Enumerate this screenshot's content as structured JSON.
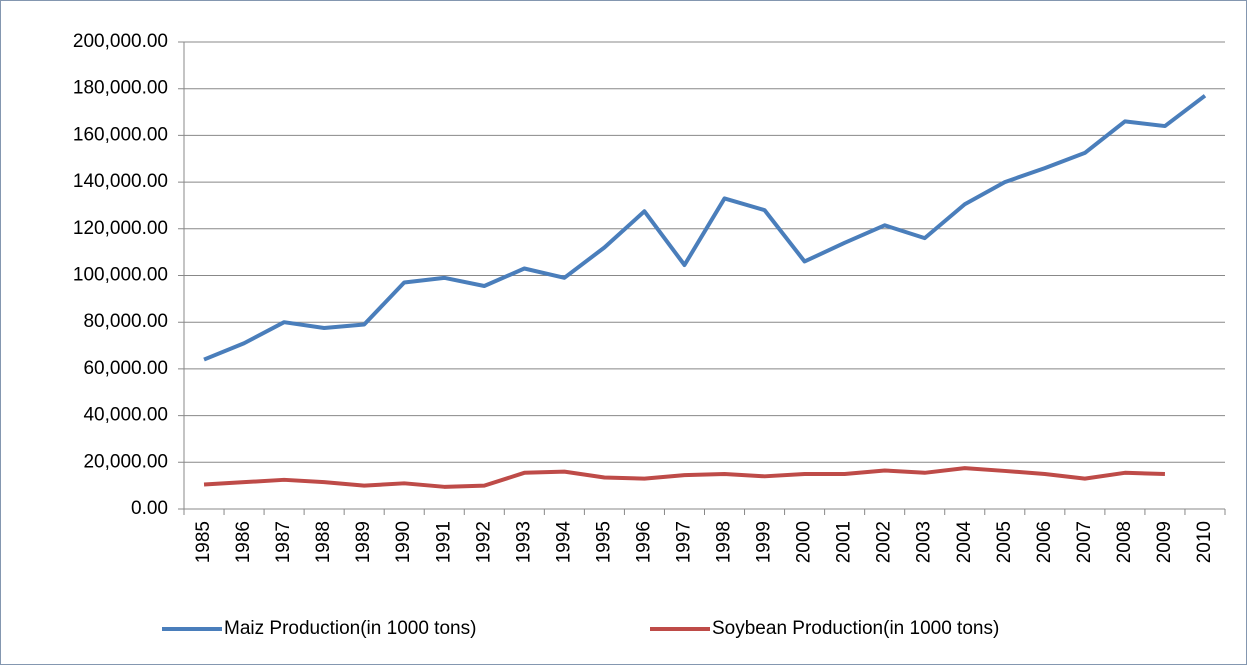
{
  "chart_data": {
    "type": "line",
    "categories": [
      "1985",
      "1986",
      "1987",
      "1988",
      "1989",
      "1990",
      "1991",
      "1992",
      "1993",
      "1994",
      "1995",
      "1996",
      "1997",
      "1998",
      "1999",
      "2000",
      "2001",
      "2002",
      "2003",
      "2004",
      "2005",
      "2006",
      "2007",
      "2008",
      "2009",
      "2010"
    ],
    "series": [
      {
        "name": "Maiz Production(in 1000 tons)",
        "color": "#4a7ebb",
        "values": [
          64000,
          71000,
          80000,
          77500,
          79000,
          97000,
          99000,
          95500,
          103000,
          99000,
          112000,
          127500,
          104500,
          133000,
          128000,
          106000,
          114000,
          121500,
          116000,
          130500,
          140000,
          146000,
          152500,
          166000,
          164000,
          177000
        ]
      },
      {
        "name": "Soybean Production(in 1000 tons)",
        "color": "#be4b48",
        "values": [
          10500,
          11500,
          12500,
          11500,
          10000,
          11000,
          9500,
          10000,
          15500,
          16000,
          13500,
          13000,
          14500,
          15000,
          14000,
          15000,
          15000,
          16500,
          15500,
          17500,
          16300,
          15000,
          13000,
          15500,
          15000,
          null
        ]
      }
    ],
    "ylim": [
      0,
      200000
    ],
    "yticks": [
      {
        "value": 0,
        "label": "0.00"
      },
      {
        "value": 20000,
        "label": "20,000.00"
      },
      {
        "value": 40000,
        "label": "40,000.00"
      },
      {
        "value": 60000,
        "label": "60,000.00"
      },
      {
        "value": 80000,
        "label": "80,000.00"
      },
      {
        "value": 100000,
        "label": "100,000.00"
      },
      {
        "value": 120000,
        "label": "120,000.00"
      },
      {
        "value": 140000,
        "label": "140,000.00"
      },
      {
        "value": 160000,
        "label": "160,000.00"
      },
      {
        "value": 180000,
        "label": "180,000.00"
      },
      {
        "value": 200000,
        "label": "200,000.00"
      }
    ],
    "grid": true,
    "legend": "bottom"
  }
}
